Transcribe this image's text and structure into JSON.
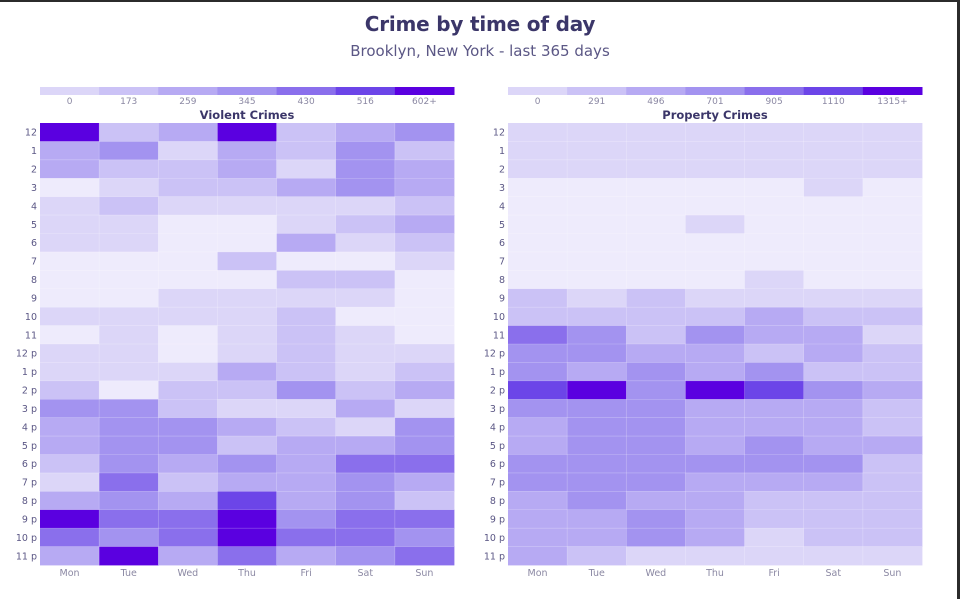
{
  "title": "Crime by time of day",
  "subtitle": "Brooklyn, New York - last 365 days",
  "chart_data": [
    {
      "type": "heatmap",
      "title": "Violent Crimes",
      "x": [
        "Mon",
        "Tue",
        "Wed",
        "Thu",
        "Fri",
        "Sat",
        "Sun"
      ],
      "y": [
        "12",
        "1",
        "2",
        "3",
        "4",
        "5",
        "6",
        "7",
        "8",
        "9",
        "10",
        "11",
        "12 p",
        "1 p",
        "2 p",
        "3 p",
        "4 p",
        "5 p",
        "6 p",
        "7 p",
        "8 p",
        "9 p",
        "10 p",
        "11 p"
      ],
      "legend_thresholds": [
        "0",
        "173",
        "259",
        "345",
        "430",
        "516",
        "602+"
      ],
      "colors": [
        "#eeebfc",
        "#dcd6f8",
        "#cbc2f6",
        "#b7aaf3",
        "#a393f0",
        "#8a6fec",
        "#6c45e8",
        "#5a00e0"
      ],
      "values": [
        [
          7,
          2,
          3,
          7,
          2,
          3,
          4
        ],
        [
          3,
          4,
          1,
          3,
          2,
          4,
          2
        ],
        [
          3,
          2,
          2,
          3,
          1,
          4,
          3
        ],
        [
          0,
          1,
          2,
          2,
          3,
          4,
          3
        ],
        [
          1,
          2,
          1,
          1,
          1,
          1,
          2
        ],
        [
          1,
          1,
          0,
          0,
          1,
          2,
          3
        ],
        [
          1,
          1,
          0,
          0,
          3,
          1,
          2
        ],
        [
          0,
          0,
          0,
          2,
          0,
          0,
          1
        ],
        [
          0,
          0,
          0,
          0,
          2,
          2,
          0
        ],
        [
          0,
          0,
          1,
          1,
          1,
          1,
          0
        ],
        [
          1,
          1,
          1,
          1,
          2,
          0,
          0
        ],
        [
          0,
          1,
          0,
          1,
          2,
          1,
          0
        ],
        [
          1,
          1,
          0,
          1,
          2,
          1,
          1
        ],
        [
          1,
          1,
          1,
          3,
          2,
          1,
          2
        ],
        [
          2,
          0,
          2,
          2,
          4,
          2,
          3
        ],
        [
          4,
          4,
          2,
          1,
          1,
          3,
          1
        ],
        [
          3,
          4,
          4,
          3,
          2,
          1,
          4
        ],
        [
          3,
          4,
          4,
          2,
          3,
          3,
          4
        ],
        [
          2,
          4,
          3,
          4,
          3,
          5,
          5
        ],
        [
          1,
          5,
          2,
          3,
          3,
          4,
          3
        ],
        [
          3,
          4,
          3,
          6,
          3,
          4,
          2
        ],
        [
          7,
          5,
          5,
          7,
          4,
          5,
          5
        ],
        [
          5,
          4,
          5,
          7,
          5,
          5,
          4
        ],
        [
          3,
          7,
          3,
          5,
          3,
          4,
          5
        ]
      ]
    },
    {
      "type": "heatmap",
      "title": "Property Crimes",
      "x": [
        "Mon",
        "Tue",
        "Wed",
        "Thu",
        "Fri",
        "Sat",
        "Sun"
      ],
      "y": [
        "12",
        "1",
        "2",
        "3",
        "4",
        "5",
        "6",
        "7",
        "8",
        "9",
        "10",
        "11",
        "12 p",
        "1 p",
        "2 p",
        "3 p",
        "4 p",
        "5 p",
        "6 p",
        "7 p",
        "8 p",
        "9 p",
        "10 p",
        "11 p"
      ],
      "legend_thresholds": [
        "0",
        "291",
        "496",
        "701",
        "905",
        "1110",
        "1315+"
      ],
      "colors": [
        "#eeebfc",
        "#dcd6f8",
        "#cbc2f6",
        "#b7aaf3",
        "#a393f0",
        "#8a6fec",
        "#6c45e8",
        "#5a00e0"
      ],
      "values": [
        [
          1,
          1,
          1,
          1,
          1,
          1,
          1
        ],
        [
          1,
          1,
          1,
          1,
          1,
          1,
          1
        ],
        [
          1,
          1,
          1,
          1,
          1,
          1,
          1
        ],
        [
          0,
          0,
          0,
          0,
          0,
          1,
          0
        ],
        [
          0,
          0,
          0,
          0,
          0,
          0,
          0
        ],
        [
          0,
          0,
          0,
          1,
          0,
          0,
          0
        ],
        [
          0,
          0,
          0,
          0,
          0,
          0,
          0
        ],
        [
          0,
          0,
          0,
          0,
          0,
          0,
          0
        ],
        [
          0,
          0,
          0,
          0,
          1,
          0,
          0
        ],
        [
          2,
          1,
          2,
          1,
          1,
          1,
          1
        ],
        [
          2,
          2,
          2,
          2,
          3,
          2,
          2
        ],
        [
          5,
          4,
          2,
          4,
          3,
          3,
          1
        ],
        [
          4,
          4,
          3,
          3,
          2,
          3,
          2
        ],
        [
          4,
          3,
          4,
          3,
          4,
          2,
          2
        ],
        [
          6,
          7,
          4,
          7,
          6,
          4,
          3
        ],
        [
          4,
          4,
          4,
          3,
          3,
          3,
          2
        ],
        [
          3,
          4,
          4,
          3,
          3,
          3,
          2
        ],
        [
          3,
          4,
          4,
          3,
          4,
          3,
          3
        ],
        [
          4,
          4,
          4,
          4,
          4,
          4,
          2
        ],
        [
          4,
          4,
          4,
          3,
          3,
          3,
          2
        ],
        [
          3,
          4,
          3,
          3,
          2,
          2,
          2
        ],
        [
          3,
          3,
          4,
          3,
          2,
          2,
          2
        ],
        [
          3,
          3,
          4,
          3,
          1,
          2,
          2
        ],
        [
          3,
          2,
          1,
          1,
          1,
          1,
          1
        ]
      ]
    }
  ]
}
